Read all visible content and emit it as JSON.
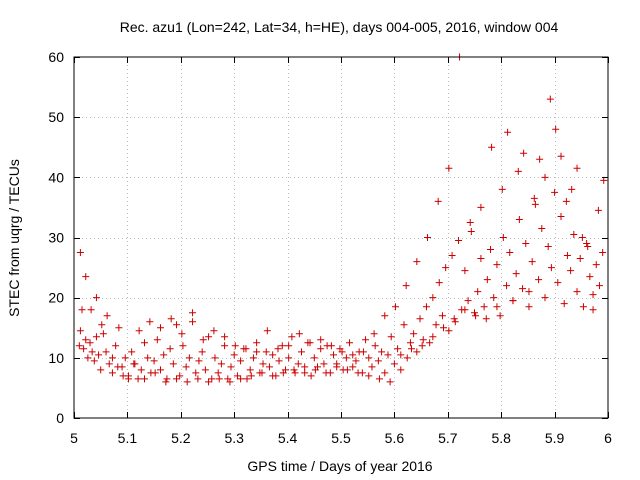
{
  "chart_data": {
    "type": "scatter",
    "title": "Rec. azu1 (Lon=242, Lat=34, h=HE), days 004-005, 2016, window 004",
    "xlabel": "GPS time / Days of year 2016",
    "ylabel": "STEC from uqrg / TECUs",
    "xlim": [
      5,
      6
    ],
    "ylim": [
      0,
      60
    ],
    "xticks": [
      5,
      5.1,
      5.2,
      5.3,
      5.4,
      5.5,
      5.6,
      5.7,
      5.8,
      5.9,
      6
    ],
    "xtick_labels": [
      "5",
      "5.1",
      "5.2",
      "5.3",
      "5.4",
      "5.5",
      "5.6",
      "5.7",
      "5.8",
      "5.9",
      "6"
    ],
    "yticks": [
      0,
      10,
      20,
      30,
      40,
      50,
      60
    ],
    "ytick_labels": [
      "0",
      "10",
      "20",
      "30",
      "40",
      "50",
      "60"
    ],
    "grid": true,
    "legend": "none",
    "marker": "+",
    "color": "#cc0000",
    "series": [
      {
        "x": [
          5.01,
          5.012,
          5.015,
          5.018,
          5.022,
          5.026,
          5.03,
          5.034,
          5.038,
          5.042,
          5.046,
          5.05,
          5.055,
          5.06,
          5.066,
          5.072,
          5.078,
          5.084,
          5.09,
          5.096,
          5.102,
          5.108,
          5.114,
          5.12,
          5.126,
          5.132,
          5.138,
          5.144,
          5.15,
          5.156,
          5.162,
          5.168,
          5.174,
          5.18,
          5.186,
          5.192,
          5.198,
          5.204,
          5.21,
          5.216,
          5.222,
          5.228,
          5.234,
          5.24,
          5.246,
          5.252,
          5.258,
          5.264,
          5.27,
          5.276,
          5.282,
          5.288,
          5.294,
          5.3,
          5.306,
          5.312,
          5.318,
          5.324,
          5.33,
          5.336,
          5.342,
          5.348,
          5.354,
          5.36,
          5.366,
          5.372,
          5.378,
          5.384,
          5.39,
          5.396,
          5.402,
          5.408,
          5.414,
          5.42,
          5.426,
          5.432,
          5.438,
          5.444,
          5.45,
          5.456,
          5.462,
          5.468,
          5.474,
          5.48,
          5.486,
          5.492,
          5.498,
          5.504,
          5.51,
          5.516,
          5.522,
          5.528,
          5.534,
          5.54,
          5.546,
          5.552,
          5.558,
          5.564,
          5.57,
          5.576,
          5.582,
          5.588,
          5.594,
          5.6,
          5.606,
          5.612,
          5.618,
          5.624,
          5.63,
          5.636,
          5.642,
          5.648,
          5.654,
          5.66,
          5.666,
          5.672,
          5.678,
          5.684,
          5.69,
          5.696,
          5.702,
          5.708,
          5.714,
          5.72,
          5.726,
          5.732,
          5.738,
          5.744,
          5.75,
          5.756,
          5.762,
          5.768,
          5.774,
          5.78,
          5.786,
          5.792,
          5.798,
          5.804,
          5.81,
          5.816,
          5.822,
          5.828,
          5.834,
          5.84,
          5.846,
          5.852,
          5.858,
          5.864,
          5.87,
          5.876,
          5.882,
          5.888,
          5.894,
          5.9,
          5.906,
          5.912,
          5.918,
          5.924,
          5.93,
          5.936,
          5.942,
          5.948,
          5.954,
          5.96,
          5.966,
          5.972,
          5.978,
          5.984,
          5.99
        ],
        "y": [
          12.0,
          14.5,
          18.0,
          11.5,
          13.0,
          10.0,
          12.5,
          11.0,
          9.5,
          13.5,
          10.5,
          8.0,
          14.0,
          11.0,
          9.0,
          7.5,
          12.0,
          15.0,
          8.5,
          10.0,
          7.0,
          11.0,
          9.0,
          6.5,
          8.0,
          12.5,
          10.0,
          7.5,
          9.5,
          13.0,
          8.0,
          10.5,
          6.5,
          11.5,
          9.0,
          15.5,
          7.0,
          12.0,
          8.5,
          10.0,
          16.0,
          7.5,
          9.5,
          11.0,
          8.0,
          13.5,
          6.5,
          10.0,
          7.5,
          9.0,
          12.0,
          6.5,
          8.5,
          10.5,
          7.0,
          9.5,
          11.5,
          6.5,
          8.0,
          10.0,
          12.5,
          7.5,
          9.0,
          11.0,
          8.5,
          10.5,
          7.0,
          9.5,
          12.0,
          8.0,
          10.0,
          13.5,
          7.5,
          9.0,
          11.0,
          8.5,
          12.5,
          7.0,
          10.0,
          8.5,
          11.5,
          9.0,
          12.0,
          7.5,
          10.5,
          9.0,
          11.5,
          8.0,
          10.0,
          12.5,
          8.5,
          9.5,
          11.0,
          7.5,
          13.0,
          10.0,
          8.5,
          12.0,
          9.5,
          11.0,
          7.5,
          10.5,
          13.5,
          9.0,
          11.5,
          8.0,
          15.5,
          10.0,
          12.5,
          14.0,
          11.0,
          16.5,
          13.0,
          18.5,
          12.5,
          20.0,
          15.5,
          22.5,
          17.0,
          25.0,
          14.5,
          27.0,
          16.0,
          29.5,
          18.0,
          24.5,
          19.5,
          31.0,
          17.5,
          21.0,
          26.5,
          18.5,
          23.0,
          28.0,
          20.0,
          25.5,
          17.0,
          30.0,
          22.0,
          27.5,
          19.5,
          24.0,
          33.0,
          21.5,
          29.0,
          18.5,
          26.0,
          35.5,
          23.0,
          31.5,
          20.0,
          28.5,
          25.0,
          37.5,
          22.5,
          33.5,
          19.0,
          27.0,
          24.5,
          30.5,
          21.0,
          26.5,
          18.5,
          29.0,
          23.5,
          20.5,
          25.5,
          22.0,
          27.5
        ]
      },
      {
        "x": [
          5.012,
          5.022,
          5.032,
          5.042,
          5.052,
          5.062,
          5.072,
          5.082,
          5.092,
          5.102,
          5.112,
          5.122,
          5.132,
          5.142,
          5.152,
          5.162,
          5.172,
          5.182,
          5.192,
          5.202,
          5.212,
          5.222,
          5.232,
          5.242,
          5.252,
          5.262,
          5.272,
          5.282,
          5.292,
          5.302,
          5.312,
          5.322,
          5.332,
          5.342,
          5.352,
          5.362,
          5.372,
          5.382,
          5.392,
          5.402,
          5.412,
          5.422,
          5.432,
          5.442,
          5.452,
          5.462,
          5.472,
          5.482,
          5.492,
          5.502,
          5.512,
          5.522,
          5.532,
          5.542,
          5.552,
          5.562,
          5.572,
          5.582,
          5.592,
          5.602,
          5.612,
          5.622,
          5.632,
          5.642,
          5.652,
          5.662,
          5.672,
          5.682,
          5.692,
          5.702,
          5.712,
          5.722,
          5.732,
          5.742,
          5.752,
          5.762,
          5.772,
          5.782,
          5.792,
          5.802,
          5.812,
          5.822,
          5.832,
          5.842,
          5.852,
          5.862,
          5.872,
          5.882,
          5.892,
          5.902,
          5.912,
          5.922,
          5.932,
          5.942,
          5.952,
          5.962,
          5.972,
          5.982,
          5.992
        ],
        "y": [
          27.5,
          23.5,
          18.0,
          20.0,
          15.5,
          17.0,
          10.0,
          8.5,
          7.0,
          6.5,
          9.0,
          14.5,
          6.5,
          16.0,
          7.5,
          15.0,
          6.0,
          16.5,
          6.5,
          14.0,
          6.0,
          17.5,
          6.5,
          13.0,
          6.0,
          14.5,
          6.5,
          13.5,
          6.0,
          12.0,
          6.5,
          11.5,
          7.0,
          11.0,
          7.5,
          14.5,
          7.0,
          11.5,
          7.5,
          12.0,
          8.0,
          14.0,
          7.5,
          12.5,
          8.0,
          13.0,
          7.5,
          12.0,
          8.5,
          11.0,
          8.0,
          10.5,
          7.5,
          11.0,
          7.0,
          14.0,
          6.5,
          17.0,
          6.0,
          18.5,
          10.5,
          22.0,
          11.5,
          26.0,
          12.0,
          30.0,
          13.5,
          36.0,
          15.0,
          41.5,
          16.5,
          60.0,
          18.0,
          32.5,
          17.0,
          35.0,
          16.5,
          45.0,
          18.5,
          38.0,
          47.5,
          19.5,
          41.0,
          44.0,
          21.0,
          36.5,
          43.0,
          40.0,
          53.0,
          48.0,
          43.5,
          36.0,
          38.0,
          41.5,
          30.0,
          28.5,
          18.0,
          34.5,
          39.5
        ]
      }
    ]
  }
}
